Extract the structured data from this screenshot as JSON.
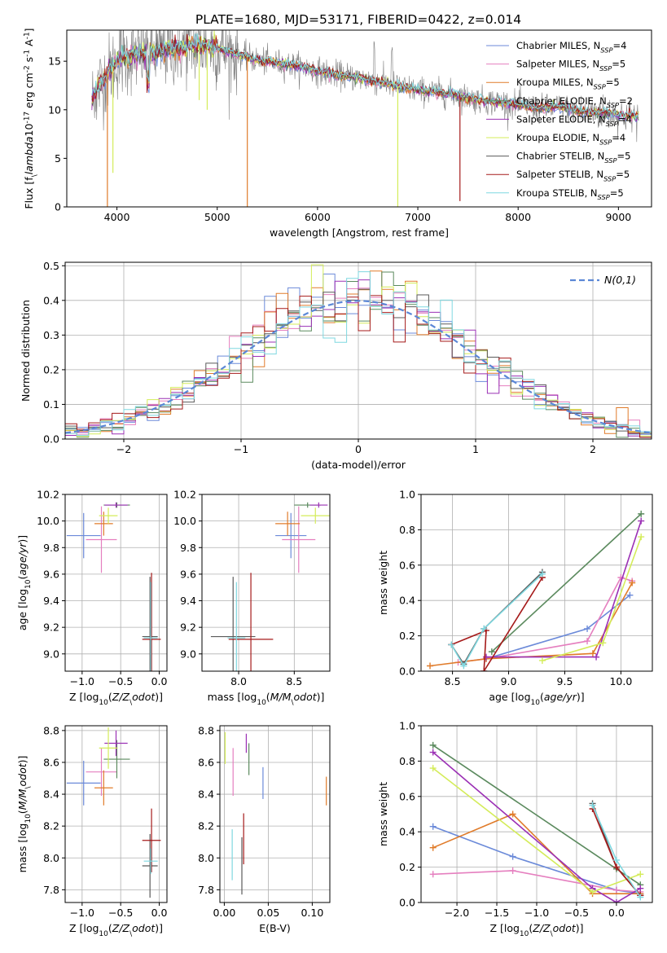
{
  "figure_title": "PLATE=1680, MJD=53171, FIBERID=0422, z=0.014",
  "colors": {
    "Chabrier MILES": "#6b8ad9",
    "Salpeter MILES": "#e57fbf",
    "Kroupa MILES": "#e07b2a",
    "Chabrier ELODIE": "#5b8a5e",
    "Salpeter ELODIE": "#9b30b5",
    "Kroupa ELODIE": "#d4ec5a",
    "Chabrier STELIB": "#5a5a5a",
    "Salpeter STELIB": "#a51a1a",
    "Kroupa STELIB": "#7fd8e0",
    "data": "#808080",
    "normal": "#5b87d6"
  },
  "chart_data": [
    {
      "id": "spectrum",
      "type": "line",
      "title": "PLATE=1680, MJD=53171, FIBERID=0422, z=0.014",
      "xlabel": "wavelength [Angstrom, rest frame]",
      "ylabel": "Flux [f$_\\lambda$10$^{-17}$ erg cm$^{-2}$ s$^{-1}$ A$^{-1}$]",
      "xlim": [
        3500,
        9330
      ],
      "ylim": [
        0,
        18.2
      ],
      "xticks": [
        4000,
        5000,
        6000,
        7000,
        8000,
        9000
      ],
      "yticks": [
        0,
        5,
        10,
        15
      ],
      "continuum_x": [
        3750,
        3800,
        3900,
        4000,
        4100,
        4200,
        4300,
        4400,
        4500,
        4600,
        4700,
        4800,
        4900,
        5000,
        5200,
        5400,
        5600,
        5800,
        6000,
        6200,
        6400,
        6600,
        6800,
        7000,
        7200,
        7400,
        7600,
        7800,
        8000,
        8200,
        8400,
        8600,
        8800,
        9000,
        9200
      ],
      "continuum_y": [
        11.0,
        12.2,
        13.6,
        15.0,
        15.5,
        15.6,
        15.8,
        15.9,
        16.2,
        16.4,
        16.5,
        16.6,
        16.5,
        16.3,
        15.7,
        15.1,
        14.8,
        14.5,
        14.0,
        13.6,
        13.3,
        12.9,
        12.4,
        12.0,
        11.8,
        11.5,
        11.0,
        10.8,
        10.5,
        10.1,
        10.3,
        9.9,
        9.7,
        9.5,
        9.3
      ],
      "series": [
        {
          "name": "Chabrier MILES, N$_{SSP}$=4"
        },
        {
          "name": "Salpeter MILES, N$_{SSP}$=5"
        },
        {
          "name": "Kroupa MILES, N$_{SSP}$=5"
        },
        {
          "name": "Chabrier ELODIE, N$_{SSP}$=2"
        },
        {
          "name": "Salpeter ELODIE, N$_{SSP}$=4"
        },
        {
          "name": "Kroupa ELODIE, N$_{SSP}$=4"
        },
        {
          "name": "Chabrier STELIB, N$_{SSP}$=5"
        },
        {
          "name": "Salpeter STELIB, N$_{SSP}$=5"
        },
        {
          "name": "Kroupa STELIB, N$_{SSP}$=5"
        }
      ],
      "legend": "top-right"
    },
    {
      "id": "residuals",
      "type": "line",
      "xlabel": "(data-model)/error",
      "ylabel": "Normed distribution",
      "xlim": [
        -2.5,
        2.5
      ],
      "ylim": [
        0,
        0.51
      ],
      "xticks": [
        -2,
        -1,
        0,
        1,
        2
      ],
      "yticks": [
        0.0,
        0.1,
        0.2,
        0.3,
        0.4,
        0.5
      ],
      "grid": true,
      "normal_label": "$\\mathcal{N}(0,1)$",
      "legend": "top-right",
      "bin_width": 0.1,
      "bin_start": -2.5
    },
    {
      "id": "age_vs_Z",
      "type": "scatter",
      "xlabel": "Z [log$_{10}$($Z/Z_\\odot$)]",
      "ylabel": "age  [log$_{10}$($age/yr$)]",
      "xlim": [
        -1.22,
        0.1
      ],
      "ylim": [
        8.87,
        10.2
      ],
      "xticks": [
        -1.0,
        -0.5,
        0.0
      ],
      "yticks": [
        9.0,
        9.2,
        9.4,
        9.6,
        9.8,
        10.0,
        10.2
      ],
      "grid": true,
      "points": [
        {
          "model": "Chabrier MILES",
          "x": -0.98,
          "y": 9.89,
          "xerr": 0.22,
          "yerr": 0.17
        },
        {
          "model": "Salpeter MILES",
          "x": -0.75,
          "y": 9.86,
          "xerr": 0.2,
          "yerr": 0.25
        },
        {
          "model": "Kroupa MILES",
          "x": -0.72,
          "y": 9.98,
          "xerr": 0.12,
          "yerr": 0.09
        },
        {
          "model": "Chabrier ELODIE",
          "x": -0.55,
          "y": 10.12,
          "xerr": 0.17,
          "yerr": 0.02
        },
        {
          "model": "Salpeter ELODIE",
          "x": -0.56,
          "y": 10.12,
          "xerr": 0.15,
          "yerr": 0.02
        },
        {
          "model": "Kroupa ELODIE",
          "x": -0.66,
          "y": 10.04,
          "xerr": 0.12,
          "yerr": 0.06
        },
        {
          "model": "Chabrier STELIB",
          "x": -0.12,
          "y": 9.13,
          "xerr": 0.1,
          "yerr": 0.45
        },
        {
          "model": "Salpeter STELIB",
          "x": -0.1,
          "y": 9.11,
          "xerr": 0.12,
          "yerr": 0.5
        },
        {
          "model": "Kroupa STELIB",
          "x": -0.11,
          "y": 9.12,
          "xerr": 0.09,
          "yerr": 0.42
        }
      ]
    },
    {
      "id": "age_vs_mass",
      "type": "scatter",
      "xlabel": "mass [log$_{10}$($M/M_\\odot$)]",
      "ylabel": "",
      "xlim": [
        7.67,
        8.82
      ],
      "ylim": [
        8.87,
        10.2
      ],
      "xticks": [
        8.0,
        8.5
      ],
      "yticks": [
        9.0,
        9.2,
        9.4,
        9.6,
        9.8,
        10.0,
        10.2
      ],
      "grid": true,
      "points": [
        {
          "model": "Chabrier MILES",
          "x": 8.47,
          "y": 9.89,
          "xerr": 0.14,
          "yerr": 0.17
        },
        {
          "model": "Salpeter MILES",
          "x": 8.54,
          "y": 9.86,
          "xerr": 0.15,
          "yerr": 0.25
        },
        {
          "model": "Kroupa MILES",
          "x": 8.44,
          "y": 9.98,
          "xerr": 0.11,
          "yerr": 0.09
        },
        {
          "model": "Chabrier ELODIE",
          "x": 8.62,
          "y": 10.12,
          "xerr": 0.12,
          "yerr": 0.02
        },
        {
          "model": "Salpeter ELODIE",
          "x": 8.72,
          "y": 10.12,
          "xerr": 0.08,
          "yerr": 0.02
        },
        {
          "model": "Kroupa ELODIE",
          "x": 8.69,
          "y": 10.04,
          "xerr": 0.13,
          "yerr": 0.06
        },
        {
          "model": "Chabrier STELIB",
          "x": 7.95,
          "y": 9.13,
          "xerr": 0.2,
          "yerr": 0.45
        },
        {
          "model": "Salpeter STELIB",
          "x": 8.11,
          "y": 9.11,
          "xerr": 0.2,
          "yerr": 0.5
        },
        {
          "model": "Kroupa STELIB",
          "x": 7.98,
          "y": 9.12,
          "xerr": 0.08,
          "yerr": 0.42
        }
      ]
    },
    {
      "id": "weight_vs_age",
      "type": "line",
      "xlabel": "age  [log$_{10}$($age/yr$)]",
      "ylabel": "mass weight",
      "xlim": [
        8.22,
        10.28
      ],
      "ylim": [
        0,
        1.0
      ],
      "xticks": [
        8.5,
        9.0,
        9.5,
        10.0
      ],
      "yticks": [
        0.0,
        0.2,
        0.4,
        0.6,
        0.8,
        1.0
      ],
      "grid": true,
      "series": [
        {
          "model": "Chabrier MILES",
          "x": [
            8.8,
            9.7,
            10.08
          ],
          "y": [
            0.07,
            0.24,
            0.43
          ]
        },
        {
          "model": "Salpeter MILES",
          "x": [
            8.55,
            8.8,
            9.7,
            10.0,
            10.1
          ],
          "y": [
            0.05,
            0.07,
            0.17,
            0.53,
            0.51
          ]
        },
        {
          "model": "Kroupa MILES",
          "x": [
            8.3,
            8.8,
            9.75,
            10.1
          ],
          "y": [
            0.03,
            0.07,
            0.1,
            0.5
          ]
        },
        {
          "model": "Chabrier ELODIE",
          "x": [
            8.85,
            10.18
          ],
          "y": [
            0.11,
            0.89
          ]
        },
        {
          "model": "Salpeter ELODIE",
          "x": [
            8.8,
            9.78,
            10.18
          ],
          "y": [
            0.08,
            0.08,
            0.85
          ]
        },
        {
          "model": "Kroupa ELODIE",
          "x": [
            9.3,
            9.84,
            10.18
          ],
          "y": [
            0.06,
            0.16,
            0.76
          ]
        },
        {
          "model": "Chabrier STELIB",
          "x": [
            8.49,
            8.6,
            8.78,
            9.3
          ],
          "y": [
            0.15,
            0.04,
            0.24,
            0.56
          ]
        },
        {
          "model": "Salpeter STELIB",
          "x": [
            8.49,
            8.8,
            8.78,
            9.3
          ],
          "y": [
            0.15,
            0.23,
            0.0,
            0.53
          ]
        },
        {
          "model": "Kroupa STELIB",
          "x": [
            8.49,
            8.6,
            8.78,
            9.3
          ],
          "y": [
            0.15,
            0.03,
            0.24,
            0.55
          ]
        }
      ]
    },
    {
      "id": "mass_vs_Z",
      "type": "scatter",
      "xlabel": "Z [log$_{10}$($Z/Z_\\odot$)]",
      "ylabel": "mass [log$_{10}$($M/M_\\odot$)]",
      "xlim": [
        -1.22,
        0.1
      ],
      "ylim": [
        7.72,
        8.83
      ],
      "xticks": [
        -1.0,
        -0.5,
        0.0
      ],
      "yticks": [
        7.8,
        8.0,
        8.2,
        8.4,
        8.6,
        8.8
      ],
      "grid": true,
      "points": [
        {
          "model": "Chabrier MILES",
          "x": -0.98,
          "y": 8.47,
          "xerr": 0.22,
          "yerr": 0.14
        },
        {
          "model": "Salpeter MILES",
          "x": -0.75,
          "y": 8.54,
          "xerr": 0.2,
          "yerr": 0.15
        },
        {
          "model": "Kroupa MILES",
          "x": -0.72,
          "y": 8.44,
          "xerr": 0.12,
          "yerr": 0.11
        },
        {
          "model": "Chabrier ELODIE",
          "x": -0.55,
          "y": 8.62,
          "xerr": 0.17,
          "yerr": 0.12
        },
        {
          "model": "Salpeter ELODIE",
          "x": -0.56,
          "y": 8.72,
          "xerr": 0.15,
          "yerr": 0.08
        },
        {
          "model": "Kroupa ELODIE",
          "x": -0.66,
          "y": 8.69,
          "xerr": 0.12,
          "yerr": 0.13
        },
        {
          "model": "Chabrier STELIB",
          "x": -0.12,
          "y": 7.95,
          "xerr": 0.1,
          "yerr": 0.2
        },
        {
          "model": "Salpeter STELIB",
          "x": -0.1,
          "y": 8.11,
          "xerr": 0.12,
          "yerr": 0.2
        },
        {
          "model": "Kroupa STELIB",
          "x": -0.11,
          "y": 7.98,
          "xerr": 0.09,
          "yerr": 0.08
        }
      ]
    },
    {
      "id": "mass_vs_EBV",
      "type": "scatter",
      "xlabel": "E(B-V)",
      "ylabel": "",
      "xlim": [
        -0.005,
        0.12
      ],
      "ylim": [
        7.72,
        8.83
      ],
      "xticks": [
        0.0,
        0.05,
        0.1
      ],
      "yticks": [
        7.8,
        8.0,
        8.2,
        8.4,
        8.6,
        8.8
      ],
      "grid": true,
      "points": [
        {
          "model": "Chabrier MILES",
          "x": 0.044,
          "y": 8.47,
          "xerr": 0.0,
          "yerr": 0.1
        },
        {
          "model": "Salpeter MILES",
          "x": 0.01,
          "y": 8.54,
          "xerr": 0.0,
          "yerr": 0.15
        },
        {
          "model": "Kroupa MILES",
          "x": 0.116,
          "y": 8.42,
          "xerr": 0.0,
          "yerr": 0.09
        },
        {
          "model": "Chabrier ELODIE",
          "x": 0.028,
          "y": 8.62,
          "xerr": 0.0,
          "yerr": 0.1
        },
        {
          "model": "Salpeter ELODIE",
          "x": 0.025,
          "y": 8.72,
          "xerr": 0.0,
          "yerr": 0.06
        },
        {
          "model": "Kroupa ELODIE",
          "x": 0.001,
          "y": 8.69,
          "xerr": 0.0,
          "yerr": 0.1
        },
        {
          "model": "Chabrier STELIB",
          "x": 0.02,
          "y": 7.95,
          "xerr": 0.0,
          "yerr": 0.18
        },
        {
          "model": "Salpeter STELIB",
          "x": 0.022,
          "y": 8.12,
          "xerr": 0.0,
          "yerr": 0.16
        },
        {
          "model": "Kroupa STELIB",
          "x": 0.009,
          "y": 8.02,
          "xerr": 0.0,
          "yerr": 0.16
        }
      ]
    },
    {
      "id": "weight_vs_Z",
      "type": "line",
      "xlabel": "Z [log$_{10}$($Z/Z_\\odot$)]",
      "ylabel": "mass weight",
      "xlim": [
        -2.45,
        0.45
      ],
      "ylim": [
        0,
        1.0
      ],
      "xticks": [
        -2.0,
        -1.5,
        -1.0,
        -0.5,
        0.0
      ],
      "yticks": [
        0.0,
        0.2,
        0.4,
        0.6,
        0.8,
        1.0
      ],
      "grid": true,
      "series": [
        {
          "model": "Chabrier MILES",
          "x": [
            -2.3,
            -1.3,
            0.0,
            0.3
          ],
          "y": [
            0.43,
            0.26,
            0.07,
            0.05
          ]
        },
        {
          "model": "Salpeter MILES",
          "x": [
            -2.3,
            -1.3,
            0.0,
            0.3
          ],
          "y": [
            0.16,
            0.18,
            0.07,
            0.06
          ]
        },
        {
          "model": "Kroupa MILES",
          "x": [
            -2.3,
            -1.3,
            -0.3,
            0.3
          ],
          "y": [
            0.31,
            0.5,
            0.05,
            0.05
          ]
        },
        {
          "model": "Chabrier ELODIE",
          "x": [
            -2.3,
            0.0,
            0.3
          ],
          "y": [
            0.89,
            0.19,
            0.1
          ]
        },
        {
          "model": "Salpeter ELODIE",
          "x": [
            -2.3,
            -0.3,
            0.0,
            0.3
          ],
          "y": [
            0.85,
            0.08,
            0.0,
            0.08
          ]
        },
        {
          "model": "Kroupa ELODIE",
          "x": [
            -2.3,
            -0.3,
            0.3
          ],
          "y": [
            0.76,
            0.06,
            0.16
          ]
        },
        {
          "model": "Chabrier STELIB",
          "x": [
            -0.3,
            0.0,
            0.3
          ],
          "y": [
            0.56,
            0.2,
            0.04
          ]
        },
        {
          "model": "Salpeter STELIB",
          "x": [
            -0.3,
            0.0,
            0.3
          ],
          "y": [
            0.53,
            0.2,
            0.04
          ]
        },
        {
          "model": "Kroupa STELIB",
          "x": [
            -0.3,
            0.0,
            0.3
          ],
          "y": [
            0.55,
            0.24,
            0.03
          ]
        }
      ]
    }
  ]
}
